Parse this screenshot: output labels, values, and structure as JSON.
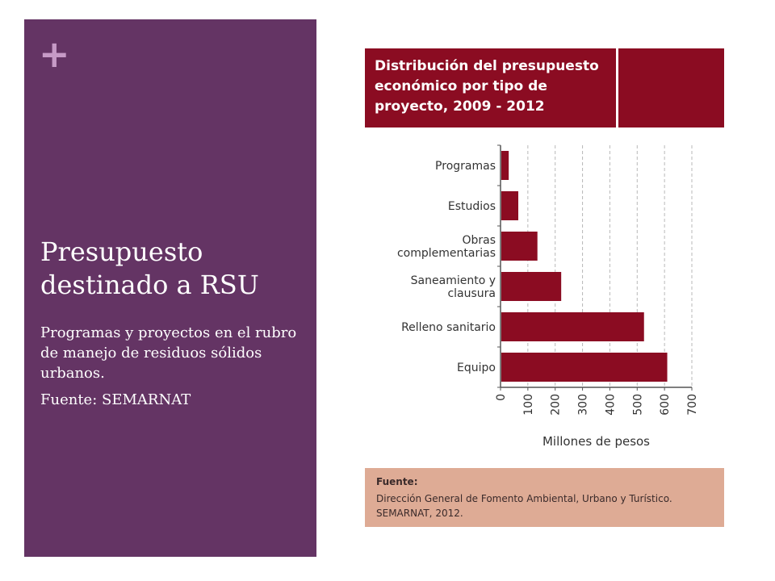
{
  "slide": {
    "plus_symbol": "+",
    "title": "Presupuesto destinado a RSU",
    "description": "Programas y proyectos en el rubro de manejo de residuos sólidos urbanos.",
    "source_line": "Fuente: SEMARNAT"
  },
  "colors": {
    "panel": "#643464",
    "plus": "#c69ac6",
    "bar": "#8b0c22",
    "title_box": "#8b0c22",
    "source_box": "#deab95"
  },
  "figure": {
    "title": "Distribución del presupuesto económico por tipo de proyecto, 2009 - 2012",
    "source_label": "Fuente:",
    "source_text": "Dirección General de Fomento Ambiental, Urbano y Turístico. SEMARNAT, 2012."
  },
  "chart_data": {
    "type": "bar",
    "orientation": "horizontal",
    "title": "Distribución del presupuesto económico por tipo de proyecto, 2009 - 2012",
    "categories": [
      [
        "Programas"
      ],
      [
        "Estudios"
      ],
      [
        "Obras",
        "complementarias"
      ],
      [
        "Saneamiento y",
        "clausura"
      ],
      [
        "Relleno sanitario"
      ],
      [
        "Equipo"
      ]
    ],
    "values": [
      30,
      65,
      135,
      222,
      525,
      610
    ],
    "xlabel": "Millones de pesos",
    "ylabel": "",
    "xlim": [
      0,
      700
    ],
    "xticks": [
      0,
      100,
      200,
      300,
      400,
      500,
      600,
      700
    ],
    "grid": true,
    "legend": "none"
  }
}
